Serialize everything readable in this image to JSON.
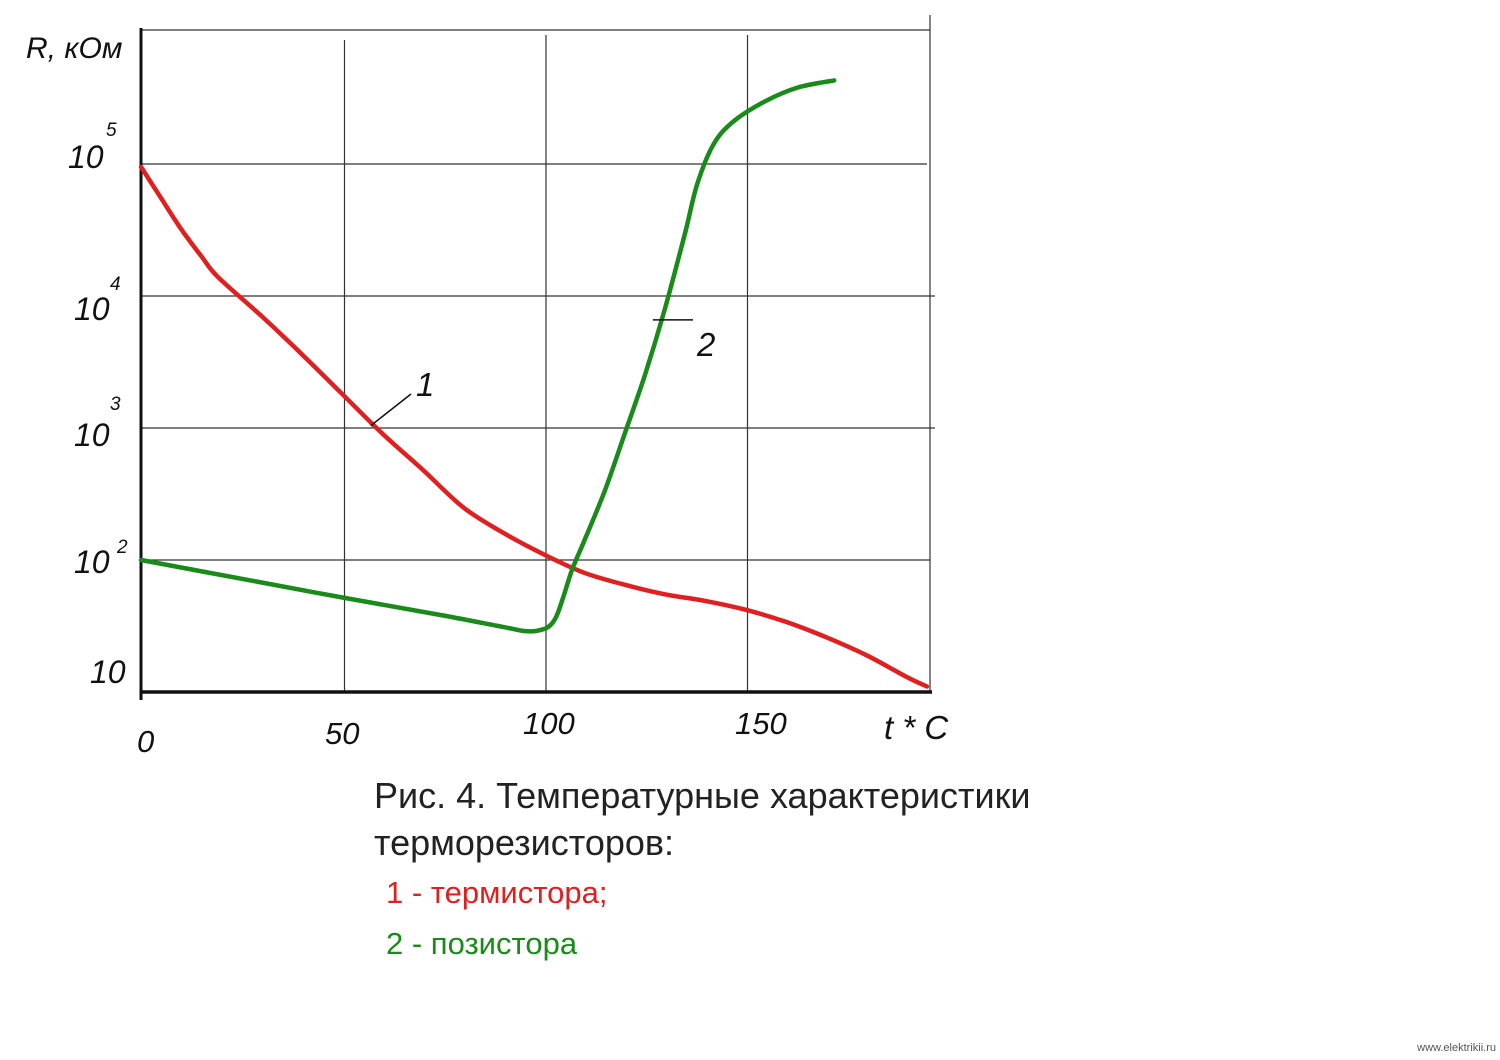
{
  "chart_data": {
    "type": "line",
    "y_scale": "log",
    "ylabel": "R, кОм",
    "xlabel": "t * C",
    "x_ticks": [
      "0",
      "50",
      "100",
      "150"
    ],
    "y_ticks": [
      {
        "value": 10,
        "base": "10",
        "exp": ""
      },
      {
        "value": 100,
        "base": "10",
        "exp": "2"
      },
      {
        "value": 1000,
        "base": "10",
        "exp": "3"
      },
      {
        "value": 10000,
        "base": "10",
        "exp": "4"
      },
      {
        "value": 100000,
        "base": "10",
        "exp": "5"
      }
    ],
    "xlim": [
      0,
      195
    ],
    "ylim": [
      10,
      500000
    ],
    "grid": true,
    "series": [
      {
        "name": "1",
        "color": "#e02020",
        "points": [
          [
            0,
            95000
          ],
          [
            5,
            55000
          ],
          [
            10,
            32000
          ],
          [
            15,
            20000
          ],
          [
            19,
            14000
          ],
          [
            30,
            7000
          ],
          [
            40,
            3600
          ],
          [
            50,
            1800
          ],
          [
            60,
            900
          ],
          [
            70,
            480
          ],
          [
            80,
            250
          ],
          [
            90,
            160
          ],
          [
            100,
            110
          ],
          [
            110,
            80
          ],
          [
            120,
            65
          ],
          [
            130,
            55
          ],
          [
            140,
            49
          ],
          [
            150,
            42
          ],
          [
            160,
            34
          ],
          [
            170,
            26
          ],
          [
            180,
            19
          ],
          [
            190,
            13
          ],
          [
            195,
            11
          ]
        ]
      },
      {
        "name": "2",
        "color": "#1a8a1a",
        "points": [
          [
            0,
            100
          ],
          [
            25,
            72
          ],
          [
            50,
            52
          ],
          [
            75,
            38
          ],
          [
            90,
            31
          ],
          [
            95,
            29
          ],
          [
            98,
            29
          ],
          [
            101,
            31
          ],
          [
            103,
            37
          ],
          [
            105,
            55
          ],
          [
            107,
            85
          ],
          [
            110,
            140
          ],
          [
            115,
            330
          ],
          [
            120,
            900
          ],
          [
            125,
            2500
          ],
          [
            130,
            8000
          ],
          [
            135,
            30000
          ],
          [
            138,
            70000
          ],
          [
            142,
            140000
          ],
          [
            147,
            210000
          ],
          [
            155,
            300000
          ],
          [
            163,
            380000
          ],
          [
            172,
            430000
          ]
        ]
      }
    ],
    "annotations": [
      {
        "text": "1",
        "series": "1",
        "at": [
          57,
          1040
        ]
      },
      {
        "text": "2",
        "series": "2",
        "at": [
          127,
          6600
        ]
      }
    ]
  },
  "caption": {
    "line1": "Рис. 4. Температурные характеристики",
    "line2": "терморезисторов:",
    "legend": [
      {
        "text": "1 - термистора;",
        "color": "#e02020"
      },
      {
        "text": "2 - позистора",
        "color": "#1a8a1a"
      }
    ]
  },
  "watermark": "www.elektrikii.ru"
}
